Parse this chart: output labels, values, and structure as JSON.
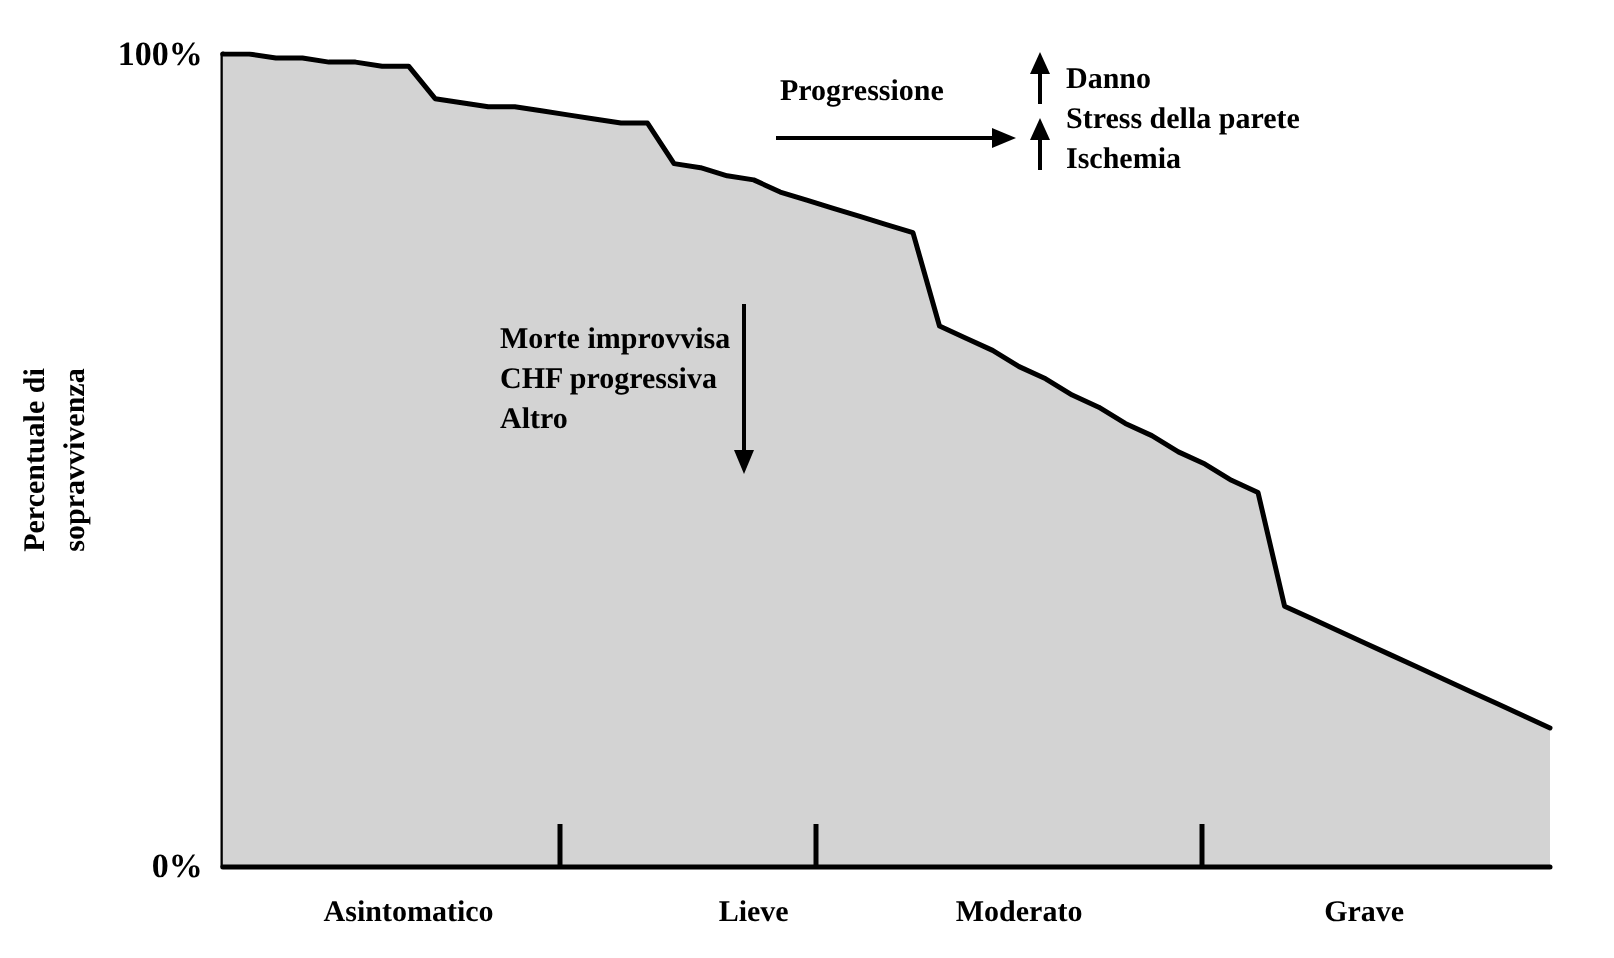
{
  "chart_data": {
    "type": "area",
    "ylabel": "Percentuale di\nsopravvivenza",
    "categories": [
      null,
      null,
      null,
      null,
      null,
      null,
      null,
      "Asintomatico",
      null,
      null,
      null,
      null,
      null,
      null,
      null,
      null,
      null,
      null,
      null,
      null,
      "Lieve",
      null,
      null,
      null,
      null,
      null,
      null,
      null,
      null,
      null,
      "Moderato",
      null,
      null,
      null,
      null,
      null,
      null,
      null,
      null,
      null,
      null,
      null,
      null,
      "Grave",
      null,
      null,
      null,
      null,
      null,
      null,
      null
    ],
    "series": [
      {
        "color": "#d3d3d3",
        "values": [
          100,
          100,
          99.5,
          99.5,
          99,
          99,
          98.5,
          98.5,
          94.5,
          94,
          93.5,
          93.5,
          93,
          92.5,
          92,
          91.5,
          91.5,
          86.5,
          86,
          85,
          84.5,
          83,
          82,
          81,
          80,
          79,
          78,
          66.5,
          65,
          63.5,
          61.5,
          60,
          58,
          56.5,
          54.5,
          53,
          51,
          49.5,
          47.5,
          46,
          32,
          30.5,
          29,
          27.5,
          26,
          24.5,
          23,
          21.5,
          20,
          18.5,
          17
        ]
      }
    ],
    "ylim": [
      0,
      100
    ],
    "yticks": [
      {
        "value": 0,
        "label": "0%"
      },
      {
        "value": 100,
        "label": "100%"
      }
    ],
    "annotations": [
      "Progressione",
      "Danno",
      "Stress della parete",
      "Ischemia",
      "Morte improvvisa\nCHF progressiva\nAltro"
    ],
    "marker": "none",
    "line_style": "solid"
  }
}
